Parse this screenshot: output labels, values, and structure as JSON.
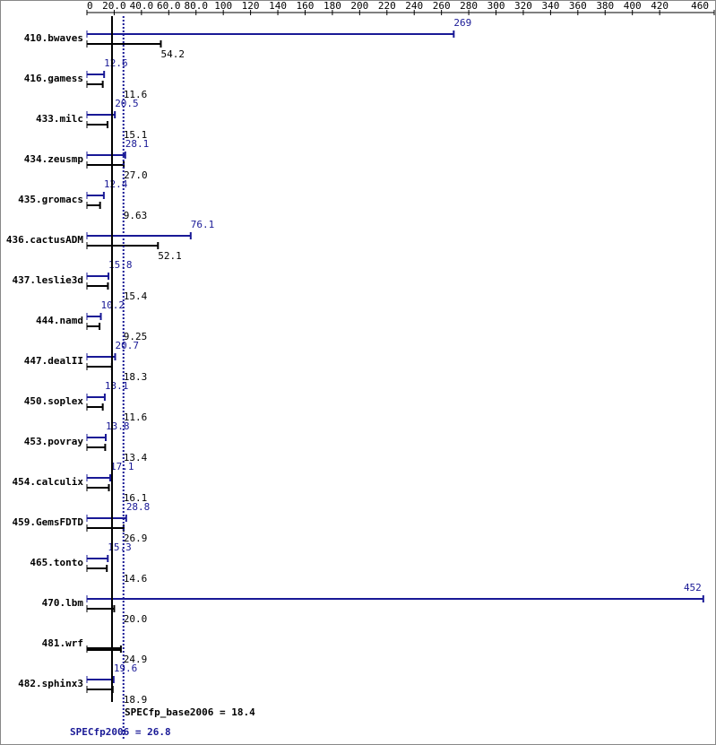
{
  "chart_data": {
    "type": "hbar",
    "categories": [
      "410.bwaves",
      "416.gamess",
      "433.milc",
      "434.zeusmp",
      "435.gromacs",
      "436.cactusADM",
      "437.leslie3d",
      "444.namd",
      "447.dealII",
      "450.soplex",
      "453.povray",
      "454.calculix",
      "459.GemsFDTD",
      "465.tonto",
      "470.lbm",
      "481.wrf",
      "482.sphinx3"
    ],
    "series": [
      {
        "name": "SPECfp2006",
        "color": "#191996",
        "values": [
          269,
          12.6,
          20.5,
          28.1,
          12.4,
          76.1,
          15.8,
          10.2,
          20.7,
          13.1,
          13.8,
          17.1,
          28.8,
          15.3,
          452,
          null,
          19.6
        ]
      },
      {
        "name": "SPECfp_base2006",
        "color": "#000000",
        "values": [
          54.2,
          11.6,
          15.1,
          27.0,
          9.63,
          52.1,
          15.4,
          9.25,
          18.3,
          11.6,
          13.4,
          16.1,
          26.9,
          14.6,
          20.0,
          24.9,
          18.9
        ],
        "value_labels": [
          "54.2",
          "11.6",
          "15.1",
          "27.0",
          "9.63",
          "52.1",
          "15.4",
          "9.25",
          "18.3",
          "11.6",
          "13.4",
          "16.1",
          "26.9",
          "14.6",
          "20.0",
          "24.9",
          "18.9"
        ]
      }
    ],
    "xlim": [
      0,
      460
    ],
    "xticks": [
      0,
      {
        "value": 20,
        "label": "20.0"
      },
      {
        "value": 40,
        "label": "40.0"
      },
      {
        "value": 60,
        "label": "60.0"
      },
      {
        "value": 80,
        "label": "80.0"
      },
      100,
      120,
      140,
      160,
      180,
      200,
      220,
      240,
      260,
      280,
      300,
      320,
      340,
      360,
      380,
      400,
      420,
      460
    ],
    "base_mean": {
      "label": "SPECfp_base2006 = 18.4",
      "value": 18.4
    },
    "peak_mean": {
      "label": "SPECfp2006 = 26.8",
      "value": 26.8
    }
  }
}
